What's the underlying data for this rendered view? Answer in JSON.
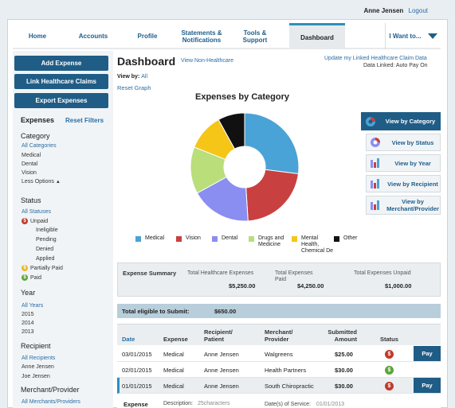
{
  "user": {
    "name": "Anne Jensen",
    "logout": "Logout"
  },
  "nav": {
    "tabs": [
      "Home",
      "Accounts",
      "Profile",
      "Statements &\nNotifications",
      "Tools &\nSupport",
      "Dashboard"
    ],
    "dropdown": "I Want to..."
  },
  "sidebar": {
    "buttons": [
      "Add Expense",
      "Link Healthcare Claims",
      "Export Expenses"
    ],
    "expenses_heading": "Expenses",
    "reset_filters": "Reset Filters",
    "category_heading": "Category",
    "categories": [
      "All Categories",
      "Medical",
      "Dental",
      "Vision"
    ],
    "less_options": "Less Options",
    "status_heading": "Status",
    "all_statuses": "All Statuses",
    "unpaid": "Unpaid",
    "unpaid_sub": [
      "Ineligible",
      "Pending",
      "Denied",
      "Applied"
    ],
    "partially_paid": "Partially Paid",
    "paid": "Paid",
    "year_heading": "Year",
    "years": [
      "All Years",
      "2015",
      "2014",
      "2013"
    ],
    "recipient_heading": "Recipient",
    "recipients": [
      "All Recipients",
      "Anne Jensen",
      "Joe Jensen"
    ],
    "merchant_heading": "Merchant/Provider",
    "merchants": [
      "All Merchants/Providers"
    ]
  },
  "main": {
    "title": "Dashboard",
    "view_non_healthcare": "View Non-Healthcare",
    "update_link": "Update my Linked Healthcare Claim Data",
    "data_linked": "Data Linked:  Auto Pay On",
    "view_by_label": "View by:",
    "view_by_value": "All",
    "reset_graph": "Reset Graph",
    "chart_title": "Expenses by Category",
    "view_buttons": [
      "View by Category",
      "View by Status",
      "View by Year",
      "View by Recipient",
      "View by\nMerchant/Provider"
    ]
  },
  "chart_data": {
    "type": "pie",
    "title": "Expenses by Category",
    "categories": [
      "Medical",
      "Vision",
      "Dental",
      "Drugs and Medicine",
      "Mental Health, Chemical De",
      "Other"
    ],
    "values": [
      27,
      22,
      18,
      14,
      11,
      8
    ],
    "colors": [
      "#4aa3d6",
      "#c94040",
      "#8a8ef0",
      "#b9de7a",
      "#f5c518",
      "#111111"
    ],
    "legend_labels": [
      "Medical",
      "Vision",
      "Dental",
      "Drugs and\nMedicine",
      "Mental\nHealth,\nChemical De",
      "Other"
    ]
  },
  "summary": {
    "heading": "Expense Summary",
    "total_healthcare_label": "Total Healthcare Expenses",
    "total_healthcare_value": "$5,250.00",
    "total_paid_label": "Total Expenses\nPaid",
    "total_paid_value": "$4,250.00",
    "total_unpaid_label": "Total Expenses Unpaid",
    "total_unpaid_value": "$1,000.00"
  },
  "eligible": {
    "label": "Total eligible to Submit:",
    "value": "$650.00"
  },
  "table": {
    "headers": [
      "Date",
      "Expense",
      "Recipient/\nPatient",
      "Merchant/\nProvider",
      "Submitted\nAmount",
      "Status"
    ],
    "rows": [
      {
        "date": "03/01/2015",
        "expense": "Medical",
        "recipient": "Anne Jensen",
        "merchant": "Walgreens",
        "amount": "$25.00",
        "status": "unpaid",
        "pay": "Pay"
      },
      {
        "date": "02/01/2015",
        "expense": "Medical",
        "recipient": "Anne Jensen",
        "merchant": "Health Partners",
        "amount": "$30.00",
        "status": "paid",
        "pay": ""
      },
      {
        "date": "01/01/2015",
        "expense": "Medical",
        "recipient": "Anne Jensen",
        "merchant": "South Chiropractic",
        "amount": "$30.00",
        "status": "unpaid",
        "pay": "Pay"
      }
    ],
    "detail_expense": "Expense",
    "detail_description_label": "Description:",
    "detail_description_value": "25characters",
    "detail_date_label": "Date(s) of Service:",
    "detail_date_value": "01/01/2013"
  },
  "colors": {
    "primary": "#1f5d86",
    "accent": "#2f8fb9",
    "unpaid": "#c0392b",
    "paid": "#5aa53a",
    "partial": "#e8b923"
  }
}
